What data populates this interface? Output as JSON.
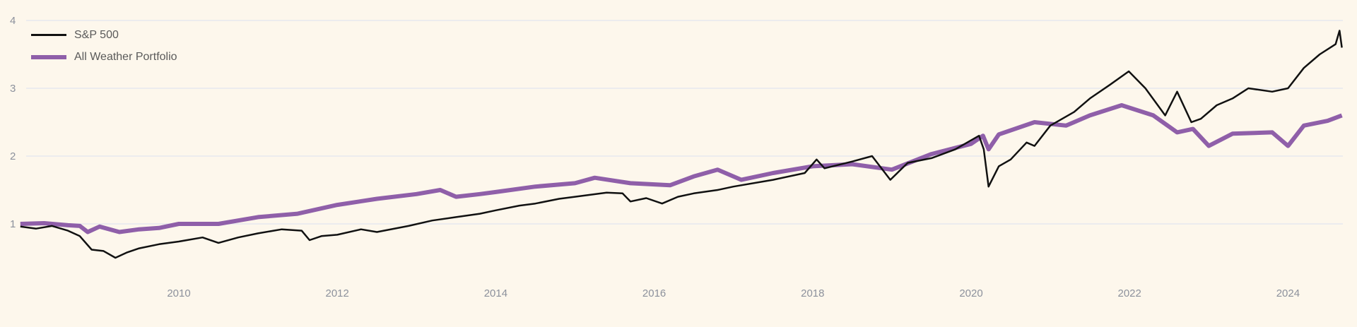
{
  "chart_data": {
    "type": "line",
    "title": "",
    "xlabel": "",
    "ylabel": "",
    "xlim": [
      2008.0,
      2024.68
    ],
    "ylim": [
      0.4,
      4
    ],
    "grid": true,
    "legend_position": "top-left",
    "x_ticks": [
      "2010",
      "2012",
      "2014",
      "2016",
      "2018",
      "2020",
      "2022",
      "2024"
    ],
    "y_ticks": [
      "1",
      "2",
      "3",
      "4"
    ],
    "series": [
      {
        "name": "S&P 500",
        "color": "#111111",
        "x": [
          2008.0,
          2008.2,
          2008.4,
          2008.6,
          2008.75,
          2008.9,
          2009.05,
          2009.2,
          2009.35,
          2009.5,
          2009.75,
          2010.0,
          2010.3,
          2010.5,
          2010.75,
          2011.0,
          2011.3,
          2011.55,
          2011.65,
          2011.8,
          2012.0,
          2012.3,
          2012.5,
          2012.9,
          2013.2,
          2013.5,
          2013.8,
          2014.0,
          2014.3,
          2014.5,
          2014.8,
          2015.0,
          2015.4,
          2015.6,
          2015.7,
          2015.9,
          2016.1,
          2016.3,
          2016.5,
          2016.8,
          2017.0,
          2017.5,
          2017.9,
          2018.05,
          2018.15,
          2018.5,
          2018.75,
          2018.98,
          2019.2,
          2019.5,
          2019.8,
          2020.1,
          2020.16,
          2020.22,
          2020.35,
          2020.5,
          2020.7,
          2020.8,
          2021.0,
          2021.3,
          2021.5,
          2021.75,
          2021.99,
          2022.2,
          2022.45,
          2022.6,
          2022.78,
          2022.9,
          2023.1,
          2023.3,
          2023.5,
          2023.8,
          2024.0,
          2024.2,
          2024.4,
          2024.6,
          2024.65,
          2024.68
        ],
        "values": [
          0.96,
          0.93,
          0.97,
          0.9,
          0.82,
          0.62,
          0.6,
          0.5,
          0.58,
          0.64,
          0.7,
          0.74,
          0.8,
          0.72,
          0.8,
          0.86,
          0.92,
          0.9,
          0.76,
          0.82,
          0.84,
          0.92,
          0.88,
          0.97,
          1.05,
          1.1,
          1.15,
          1.2,
          1.27,
          1.3,
          1.37,
          1.4,
          1.46,
          1.45,
          1.33,
          1.38,
          1.3,
          1.4,
          1.45,
          1.5,
          1.55,
          1.65,
          1.75,
          1.95,
          1.82,
          1.92,
          2.0,
          1.65,
          1.9,
          1.97,
          2.1,
          2.3,
          2.1,
          1.55,
          1.85,
          1.95,
          2.2,
          2.15,
          2.45,
          2.65,
          2.85,
          3.05,
          3.25,
          3.0,
          2.6,
          2.95,
          2.5,
          2.55,
          2.75,
          2.85,
          3.0,
          2.95,
          3.0,
          3.3,
          3.5,
          3.65,
          3.85,
          3.6
        ]
      },
      {
        "name": "All Weather Portfolio",
        "color": "#8f5fa9",
        "x": [
          2008.0,
          2008.3,
          2008.6,
          2008.75,
          2008.85,
          2009.0,
          2009.25,
          2009.5,
          2009.75,
          2010.0,
          2010.5,
          2011.0,
          2011.5,
          2012.0,
          2012.5,
          2013.0,
          2013.3,
          2013.5,
          2013.8,
          2014.0,
          2014.5,
          2015.0,
          2015.25,
          2015.7,
          2016.2,
          2016.5,
          2016.8,
          2017.1,
          2017.5,
          2018.0,
          2018.5,
          2019.0,
          2019.5,
          2020.0,
          2020.15,
          2020.22,
          2020.35,
          2020.8,
          2021.2,
          2021.5,
          2021.9,
          2022.3,
          2022.6,
          2022.8,
          2023.0,
          2023.3,
          2023.8,
          2024.0,
          2024.2,
          2024.5,
          2024.68
        ],
        "values": [
          1.0,
          1.01,
          0.98,
          0.97,
          0.88,
          0.96,
          0.88,
          0.92,
          0.94,
          1.0,
          1.0,
          1.1,
          1.15,
          1.28,
          1.37,
          1.44,
          1.5,
          1.4,
          1.44,
          1.47,
          1.55,
          1.6,
          1.68,
          1.6,
          1.57,
          1.7,
          1.8,
          1.65,
          1.75,
          1.85,
          1.88,
          1.8,
          2.03,
          2.18,
          2.3,
          2.1,
          2.32,
          2.5,
          2.45,
          2.6,
          2.75,
          2.6,
          2.35,
          2.4,
          2.15,
          2.33,
          2.35,
          2.15,
          2.45,
          2.52,
          2.6
        ]
      }
    ]
  }
}
